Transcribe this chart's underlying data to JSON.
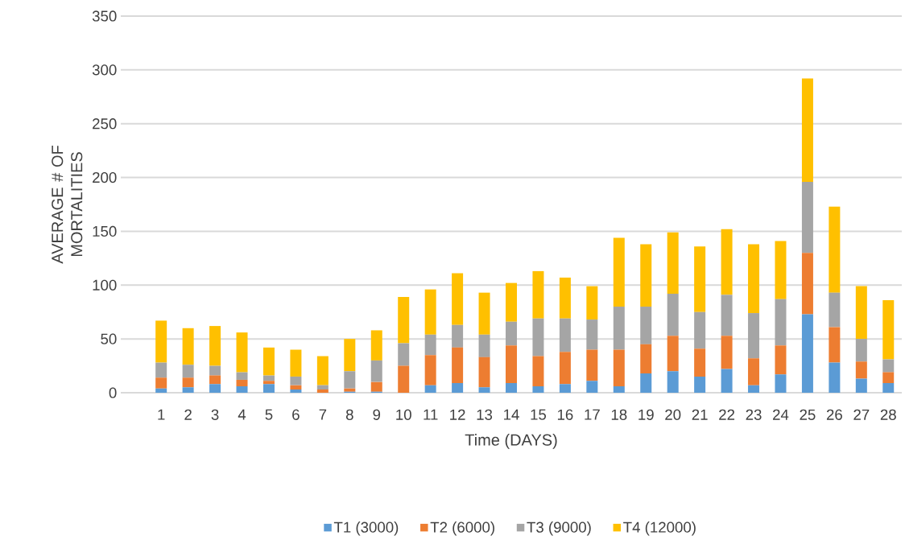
{
  "chart_data": {
    "type": "bar",
    "stacked": true,
    "xlabel": "Time (DAYS)",
    "ylabel": "AVERAGE # OF MORTALITIES",
    "categories": [
      "1",
      "2",
      "3",
      "4",
      "5",
      "6",
      "7",
      "8",
      "9",
      "10",
      "11",
      "12",
      "13",
      "14",
      "15",
      "16",
      "17",
      "18",
      "19",
      "20",
      "21",
      "22",
      "23",
      "24",
      "25",
      "26",
      "27",
      "28"
    ],
    "series": [
      {
        "name": "T1 (3000)",
        "color": "#5b9bd5",
        "values": [
          4,
          5,
          8,
          6,
          8,
          3,
          0,
          1,
          1,
          0,
          7,
          9,
          5,
          9,
          6,
          8,
          11,
          6,
          18,
          20,
          15,
          22,
          7,
          17,
          73,
          28,
          13,
          9
        ]
      },
      {
        "name": "T2 (6000)",
        "color": "#ed7d31",
        "values": [
          10,
          9,
          8,
          6,
          3,
          4,
          3,
          3,
          9,
          25,
          28,
          33,
          28,
          35,
          28,
          30,
          29,
          34,
          27,
          33,
          26,
          31,
          25,
          27,
          57,
          33,
          16,
          10
        ]
      },
      {
        "name": "T3 (9000)",
        "color": "#a5a5a5",
        "values": [
          14,
          12,
          9,
          7,
          5,
          8,
          4,
          16,
          20,
          21,
          19,
          21,
          21,
          22,
          35,
          31,
          28,
          40,
          35,
          39,
          34,
          38,
          42,
          43,
          66,
          32,
          21,
          12
        ]
      },
      {
        "name": "T4 (12000)",
        "color": "#ffc000",
        "values": [
          39,
          34,
          37,
          37,
          26,
          25,
          27,
          30,
          28,
          43,
          42,
          48,
          39,
          36,
          44,
          38,
          31,
          64,
          58,
          57,
          61,
          61,
          64,
          54,
          96,
          80,
          49,
          55
        ]
      }
    ],
    "ylim": [
      0,
      350
    ],
    "yticks": [
      0,
      50,
      100,
      150,
      200,
      250,
      300,
      350
    ],
    "grid": "y",
    "legend": "bottom"
  }
}
